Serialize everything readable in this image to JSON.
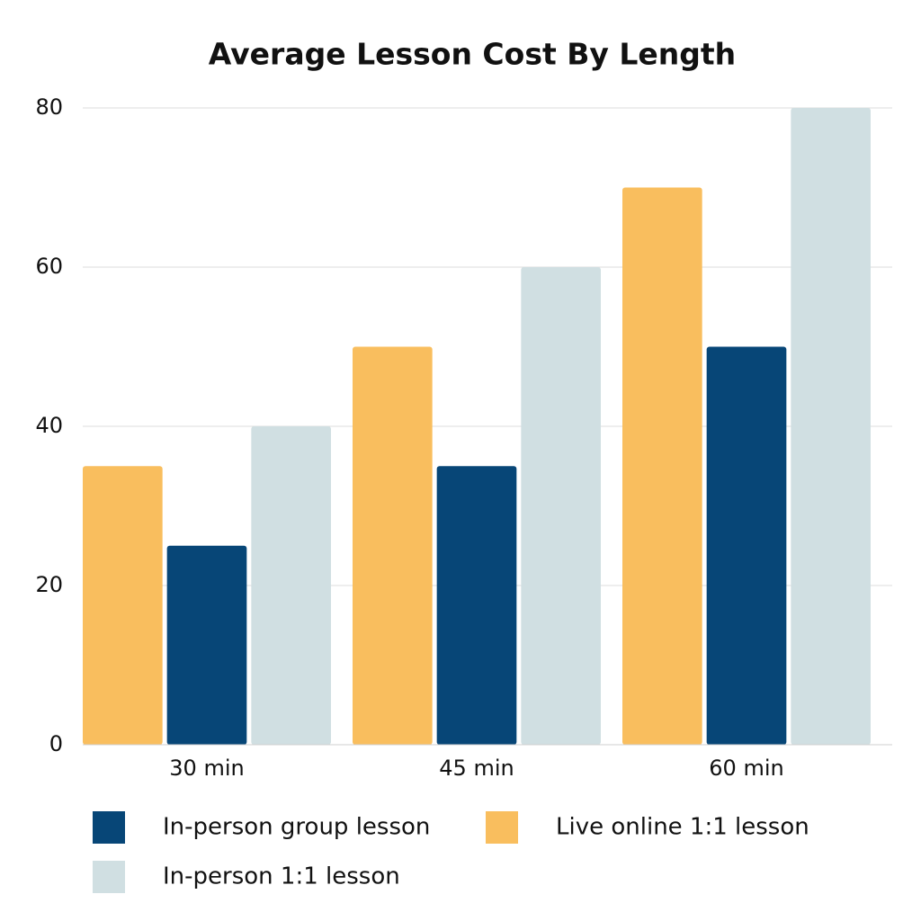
{
  "chart_data": {
    "type": "bar",
    "title": "Average Lesson Cost By Length",
    "categories": [
      "30 min",
      "45 min",
      "60 min"
    ],
    "series": [
      {
        "name": "Live online 1:1 lesson",
        "color": "#f9be5e",
        "values": [
          35,
          50,
          70
        ]
      },
      {
        "name": "In-person group lesson",
        "color": "#074677",
        "values": [
          25,
          35,
          50
        ]
      },
      {
        "name": "In-person 1:1 lesson",
        "color": "#d0dfe2",
        "values": [
          40,
          60,
          80
        ]
      }
    ],
    "ylim": [
      0,
      80
    ],
    "yticks": [
      0,
      20,
      40,
      60,
      80
    ],
    "grid": true
  }
}
